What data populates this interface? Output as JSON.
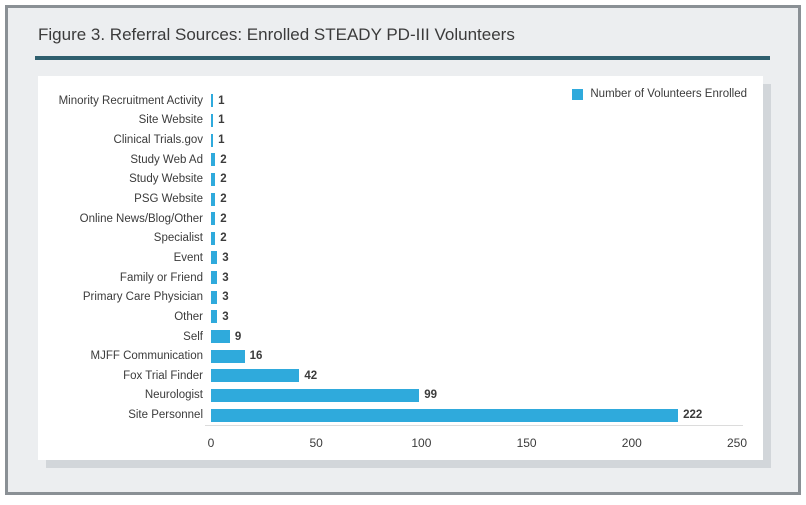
{
  "figure": {
    "title": "Figure 3. Referral Sources: Enrolled STEADY PD-III Volunteers"
  },
  "chart_data": {
    "type": "bar",
    "orientation": "horizontal",
    "categories": [
      "Minority Recruitment Activity",
      "Site Website",
      "Clinical Trials.gov",
      "Study Web Ad",
      "Study Website",
      "PSG Website",
      "Online News/Blog/Other",
      "Specialist",
      "Event",
      "Family or Friend",
      "Primary Care Physician",
      "Other",
      "Self",
      "MJFF Communication",
      "Fox Trial Finder",
      "Neurologist",
      "Site Personnel"
    ],
    "values": [
      1,
      1,
      1,
      2,
      2,
      2,
      2,
      2,
      3,
      3,
      3,
      3,
      9,
      16,
      42,
      99,
      222
    ],
    "value_labels_shown": true,
    "xlim": [
      0,
      250
    ],
    "x_ticks": [
      0,
      50,
      100,
      150,
      200,
      250
    ],
    "grid": false,
    "legend_position": "top-right",
    "legend": [
      {
        "label": "Number of Volunteers Enrolled",
        "color": "#2faadc"
      }
    ],
    "bar_color": "#2faadc"
  },
  "colors": {
    "background": "#eceef0",
    "frame_border": "#8a9095",
    "title_rule": "#2f5f6e",
    "panel": "#ffffff",
    "panel_shadow": "#d2d6da",
    "bar": "#2faadc",
    "text": "#3b3b3b"
  }
}
